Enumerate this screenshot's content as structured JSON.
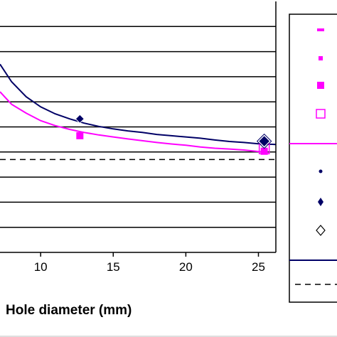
{
  "chart_data": {
    "type": "line",
    "xlabel": "Hole diameter (mm)",
    "ylabel": "",
    "title": "",
    "xlim": [
      7.2,
      26.2
    ],
    "ylim": [
      0,
      10
    ],
    "x_ticks": [
      10,
      15,
      20,
      25
    ],
    "y_gridlines": [
      1,
      2,
      3,
      4,
      5,
      6,
      7,
      8,
      9
    ],
    "grid": true,
    "legend": "right",
    "series": [
      {
        "style": "line",
        "color": "#ff00ff",
        "x": [
          7.2,
          8,
          9,
          10,
          11,
          12,
          13,
          14,
          15,
          16,
          17,
          18,
          19,
          20,
          21,
          22,
          23,
          24,
          25,
          25.5
        ],
        "y": [
          6.4,
          5.9,
          5.55,
          5.25,
          5.05,
          4.9,
          4.78,
          4.68,
          4.6,
          4.52,
          4.45,
          4.38,
          4.32,
          4.27,
          4.2,
          4.15,
          4.12,
          4.08,
          4.02,
          4.0
        ]
      },
      {
        "style": "line",
        "color": "#000066",
        "x": [
          7.2,
          8,
          9,
          10,
          11,
          12,
          13,
          14,
          15,
          16,
          17,
          18,
          19,
          20,
          21,
          22,
          23,
          24,
          25,
          26.2
        ],
        "y": [
          7.5,
          6.8,
          6.2,
          5.8,
          5.52,
          5.32,
          5.15,
          5.02,
          4.92,
          4.84,
          4.78,
          4.7,
          4.65,
          4.6,
          4.55,
          4.48,
          4.42,
          4.38,
          4.33,
          4.3
        ]
      },
      {
        "style": "dashed",
        "color": "#000000",
        "x": [
          7.2,
          26.2
        ],
        "y": [
          3.7,
          3.7
        ]
      },
      {
        "style": "marker-square-filled",
        "color": "#ff00ff",
        "x": [
          12.7,
          25.4
        ],
        "y": [
          4.65,
          4.03
        ]
      },
      {
        "style": "marker-square-hollow",
        "color": "#ff00ff",
        "x": [
          25.4
        ],
        "y": [
          4.13
        ]
      },
      {
        "style": "marker-diamond-filled",
        "color": "#000066",
        "x": [
          12.7,
          25.4
        ],
        "y": [
          5.32,
          4.43
        ]
      }
    ]
  },
  "legend": {
    "entries": [
      {
        "type": "small-bar",
        "color": "#ff00ff"
      },
      {
        "type": "small-square",
        "color": "#ff00ff"
      },
      {
        "type": "square",
        "color": "#ff00ff"
      },
      {
        "type": "hollow-square",
        "color": "#ff00ff"
      },
      {
        "type": "line",
        "color": "#ff00ff"
      },
      {
        "type": "dot",
        "color": "#000066"
      },
      {
        "type": "diamond-small",
        "color": "#000066"
      },
      {
        "type": "hollow-diamond",
        "color": "#000000"
      },
      {
        "type": "line",
        "color": "#000066"
      },
      {
        "type": "dashed",
        "color": "#000000"
      }
    ]
  }
}
